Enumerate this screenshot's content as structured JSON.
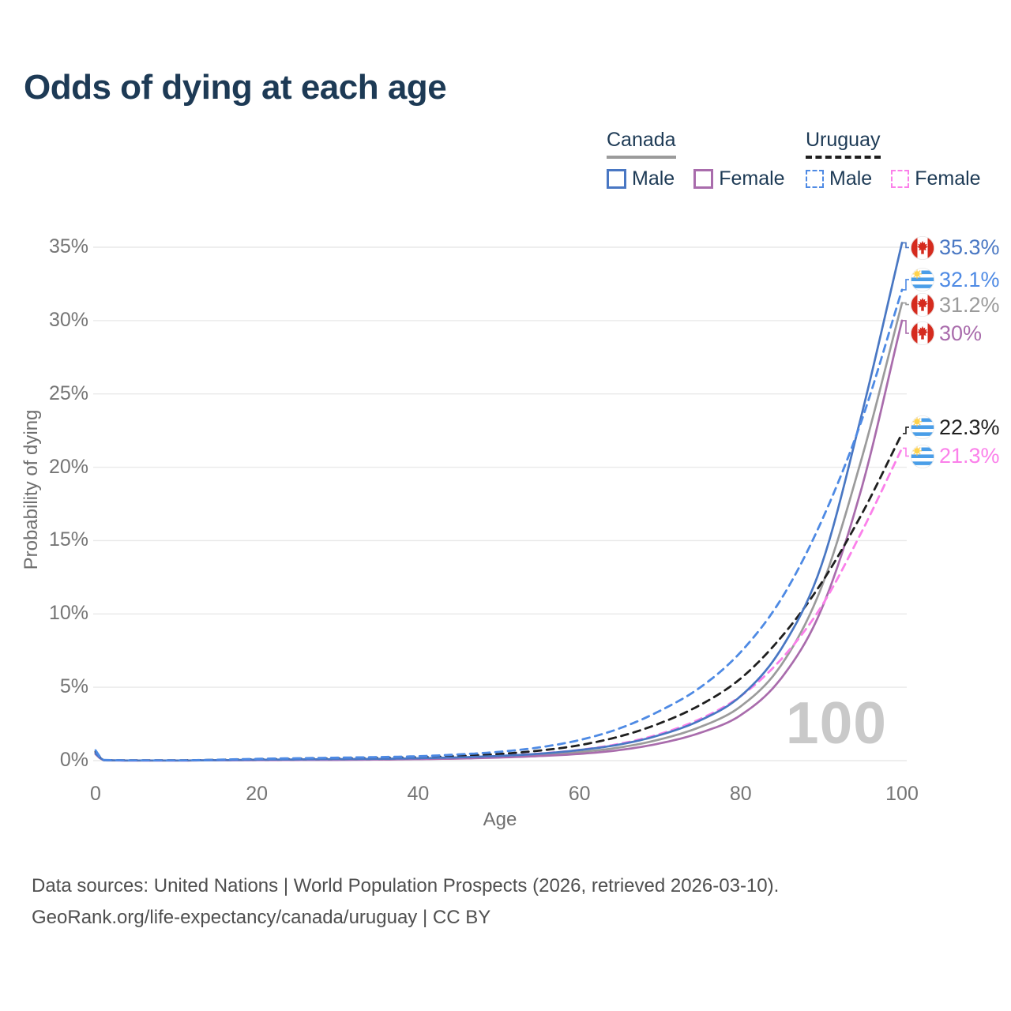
{
  "title": "Odds of dying at each age",
  "legend": {
    "groups": [
      {
        "country": "Canada",
        "line_style": "solid",
        "underline_color": "#9b9b9b",
        "items": [
          {
            "label": "Male",
            "color": "#4977c3"
          },
          {
            "label": "Female",
            "color": "#a96cac"
          }
        ]
      },
      {
        "country": "Uruguay",
        "line_style": "dashed",
        "underline_color": "#1f1f1f",
        "items": [
          {
            "label": "Male",
            "color": "#4e8ae4"
          },
          {
            "label": "Female",
            "color": "#fb80ea"
          }
        ]
      }
    ]
  },
  "watermark": "100",
  "chart_data": {
    "type": "line",
    "title": "Odds of dying at each age",
    "xlabel": "Age",
    "ylabel": "Probability of dying",
    "xlim": [
      0,
      100
    ],
    "ylim_percent": [
      0,
      35
    ],
    "x_ticks": [
      0,
      20,
      40,
      60,
      80,
      100
    ],
    "y_ticks": [
      "0%",
      "5%",
      "10%",
      "15%",
      "20%",
      "25%",
      "30%",
      "35%"
    ],
    "y_ticks_percent": [
      0,
      5,
      10,
      15,
      20,
      25,
      30,
      35
    ],
    "grid": "horizontal",
    "legend_position": "top-right",
    "ages": [
      0,
      1,
      2,
      5,
      10,
      15,
      20,
      25,
      30,
      35,
      40,
      45,
      50,
      55,
      60,
      65,
      70,
      75,
      80,
      85,
      90,
      95,
      100
    ],
    "series": [
      {
        "id": "canada-male",
        "name": "Canada Male",
        "country": "canada",
        "color": "#4977c3",
        "dash": "solid",
        "end_label": "35.3%",
        "values_percent": [
          0.5,
          0.03,
          0.02,
          0.01,
          0.01,
          0.03,
          0.06,
          0.08,
          0.1,
          0.12,
          0.16,
          0.22,
          0.32,
          0.47,
          0.72,
          1.1,
          1.75,
          2.75,
          4.4,
          7.6,
          13.3,
          23.6,
          35.3
        ]
      },
      {
        "id": "uruguay-male",
        "name": "Uruguay Male",
        "country": "uruguay",
        "color": "#4e8ae4",
        "dash": "dashed",
        "end_label": "32.1%",
        "values_percent": [
          0.7,
          0.05,
          0.03,
          0.02,
          0.02,
          0.06,
          0.12,
          0.16,
          0.2,
          0.24,
          0.3,
          0.42,
          0.6,
          0.9,
          1.4,
          2.2,
          3.4,
          5.0,
          7.4,
          11.0,
          16.3,
          23.2,
          32.1
        ]
      },
      {
        "id": "canada-both",
        "name": "Canada",
        "country": "canada",
        "color": "#9b9b9b",
        "dash": "solid",
        "end_label": "31.2%",
        "values_percent": [
          0.47,
          0.03,
          0.02,
          0.01,
          0.01,
          0.02,
          0.05,
          0.06,
          0.08,
          0.1,
          0.13,
          0.18,
          0.26,
          0.38,
          0.58,
          0.9,
          1.45,
          2.3,
          3.7,
          6.5,
          11.8,
          20.6,
          31.2
        ]
      },
      {
        "id": "canada-female",
        "name": "Canada Female",
        "country": "canada",
        "color": "#a96cac",
        "dash": "solid",
        "end_label": "30%",
        "values_percent": [
          0.44,
          0.02,
          0.01,
          0.01,
          0.01,
          0.02,
          0.03,
          0.04,
          0.05,
          0.07,
          0.1,
          0.14,
          0.21,
          0.31,
          0.46,
          0.72,
          1.18,
          1.9,
          3.1,
          5.6,
          10.3,
          18.6,
          30.0
        ]
      },
      {
        "id": "uruguay-both",
        "name": "Uruguay",
        "country": "uruguay",
        "color": "#1f1f1f",
        "dash": "dashed",
        "end_label": "22.3%",
        "values_percent": [
          0.6,
          0.04,
          0.02,
          0.02,
          0.02,
          0.05,
          0.09,
          0.12,
          0.15,
          0.18,
          0.23,
          0.31,
          0.45,
          0.68,
          1.05,
          1.65,
          2.55,
          3.8,
          5.6,
          8.4,
          12.1,
          16.8,
          22.3
        ]
      },
      {
        "id": "uruguay-female",
        "name": "Uruguay Female",
        "country": "uruguay",
        "color": "#fb80ea",
        "dash": "dashed",
        "end_label": "21.3%",
        "values_percent": [
          0.52,
          0.03,
          0.02,
          0.01,
          0.01,
          0.03,
          0.05,
          0.07,
          0.09,
          0.12,
          0.16,
          0.22,
          0.32,
          0.48,
          0.73,
          1.15,
          1.82,
          2.85,
          4.4,
          6.9,
          10.5,
          15.6,
          21.3
        ]
      }
    ]
  },
  "footer": {
    "line1": "Data sources: United Nations | World Population Prospects (2026, retrieved 2026-03-10).",
    "line2": "GeoRank.org/life-expectancy/canada/uruguay | CC BY"
  }
}
